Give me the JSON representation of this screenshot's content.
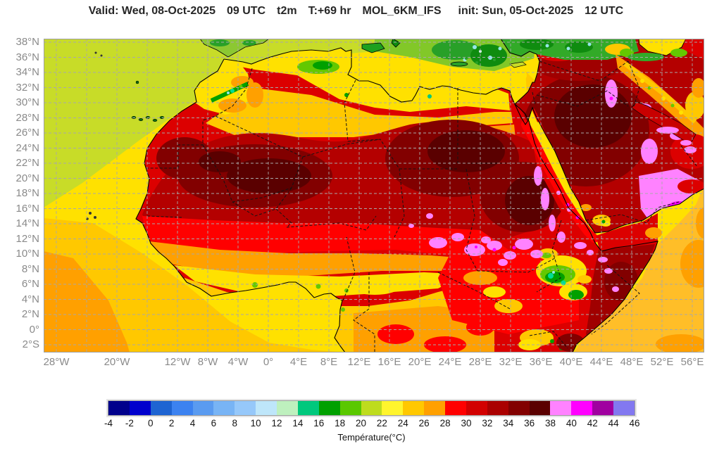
{
  "title": {
    "parts": [
      "Valid: Wed, 08-Oct-2025",
      "09 UTC",
      "t2m",
      "T:+69 hr",
      "MOL_6KM_IFS",
      "init: Sun, 05-Oct-2025",
      "12 UTC"
    ]
  },
  "axes": {
    "lat_labels": [
      {
        "text": "38°N",
        "lat": 38
      },
      {
        "text": "36°N",
        "lat": 36
      },
      {
        "text": "34°N",
        "lat": 34
      },
      {
        "text": "32°N",
        "lat": 32
      },
      {
        "text": "30°N",
        "lat": 30
      },
      {
        "text": "28°N",
        "lat": 28
      },
      {
        "text": "26°N",
        "lat": 26
      },
      {
        "text": "24°N",
        "lat": 24
      },
      {
        "text": "22°N",
        "lat": 22
      },
      {
        "text": "20°N",
        "lat": 20
      },
      {
        "text": "18°N",
        "lat": 18
      },
      {
        "text": "16°N",
        "lat": 16
      },
      {
        "text": "14°N",
        "lat": 14
      },
      {
        "text": "12°N",
        "lat": 12
      },
      {
        "text": "10°N",
        "lat": 10
      },
      {
        "text": "8°N",
        "lat": 8
      },
      {
        "text": "6°N",
        "lat": 6
      },
      {
        "text": "4°N",
        "lat": 4
      },
      {
        "text": "2°N",
        "lat": 2
      },
      {
        "text": "0°",
        "lat": 0
      },
      {
        "text": "2°S",
        "lat": -2
      }
    ],
    "lon_labels": [
      {
        "text": "28°W",
        "lon": -28
      },
      {
        "text": "20°W",
        "lon": -20
      },
      {
        "text": "12°W",
        "lon": -12
      },
      {
        "text": "8°W",
        "lon": -8
      },
      {
        "text": "4°W",
        "lon": -4
      },
      {
        "text": "0°",
        "lon": 0
      },
      {
        "text": "4°E",
        "lon": 4
      },
      {
        "text": "8°E",
        "lon": 8
      },
      {
        "text": "12°E",
        "lon": 12
      },
      {
        "text": "16°E",
        "lon": 16
      },
      {
        "text": "20°E",
        "lon": 20
      },
      {
        "text": "24°E",
        "lon": 24
      },
      {
        "text": "28°E",
        "lon": 28
      },
      {
        "text": "32°E",
        "lon": 32
      },
      {
        "text": "36°E",
        "lon": 36
      },
      {
        "text": "40°E",
        "lon": 40
      },
      {
        "text": "44°E",
        "lon": 44
      },
      {
        "text": "48°E",
        "lon": 48
      },
      {
        "text": "52°E",
        "lon": 52
      },
      {
        "text": "56°E",
        "lon": 56
      }
    ]
  },
  "colorbar": {
    "title": "Température(°C)",
    "ticks": [
      "-4",
      "-2",
      "0",
      "2",
      "4",
      "6",
      "8",
      "10",
      "12",
      "14",
      "16",
      "18",
      "20",
      "22",
      "24",
      "26",
      "28",
      "30",
      "32",
      "34",
      "36",
      "38",
      "40",
      "42",
      "44",
      "46"
    ],
    "colors": [
      "#00008C",
      "#0000CD",
      "#1E64D2",
      "#3C82F0",
      "#5A9BF0",
      "#78B4F5",
      "#96C8FA",
      "#BEE6FA",
      "#BEF0BE",
      "#00C87D",
      "#00A000",
      "#5AC800",
      "#BEDC1E",
      "#FFF52D",
      "#FFC800",
      "#FFA000",
      "#FF0000",
      "#D20000",
      "#AA0000",
      "#820000",
      "#5A0000",
      "#FF82FF",
      "#FF00FF",
      "#A000A0",
      "#8278F0"
    ]
  },
  "chart_data": {
    "type": "heatmap",
    "variable": "t2m",
    "title": "Valid: Wed, 08-Oct-2025 09 UTC t2m T:+69 hr MOL_6KM_IFS init: Sun, 05-Oct-2025 12 UTC",
    "x_ticks": [
      "28°W",
      "20°W",
      "12°W",
      "8°W",
      "4°W",
      "0°",
      "4°E",
      "8°E",
      "12°E",
      "16°E",
      "20°E",
      "24°E",
      "28°E",
      "32°E",
      "36°E",
      "40°E",
      "44°E",
      "48°E",
      "52°E",
      "56°E"
    ],
    "y_ticks": [
      "38°N",
      "36°N",
      "34°N",
      "32°N",
      "30°N",
      "28°N",
      "26°N",
      "24°N",
      "22°N",
      "20°N",
      "18°N",
      "16°N",
      "14°N",
      "12°N",
      "10°N",
      "8°N",
      "6°N",
      "4°N",
      "2°N",
      "0°",
      "2°S"
    ],
    "colorbar_label": "Température(°C)",
    "colorbar_ticks": [
      -4,
      -2,
      0,
      2,
      4,
      6,
      8,
      10,
      12,
      14,
      16,
      18,
      20,
      22,
      24,
      26,
      28,
      30,
      32,
      34,
      36,
      38,
      40,
      42,
      44,
      46
    ],
    "grid": true,
    "legend_position": "bottom"
  }
}
